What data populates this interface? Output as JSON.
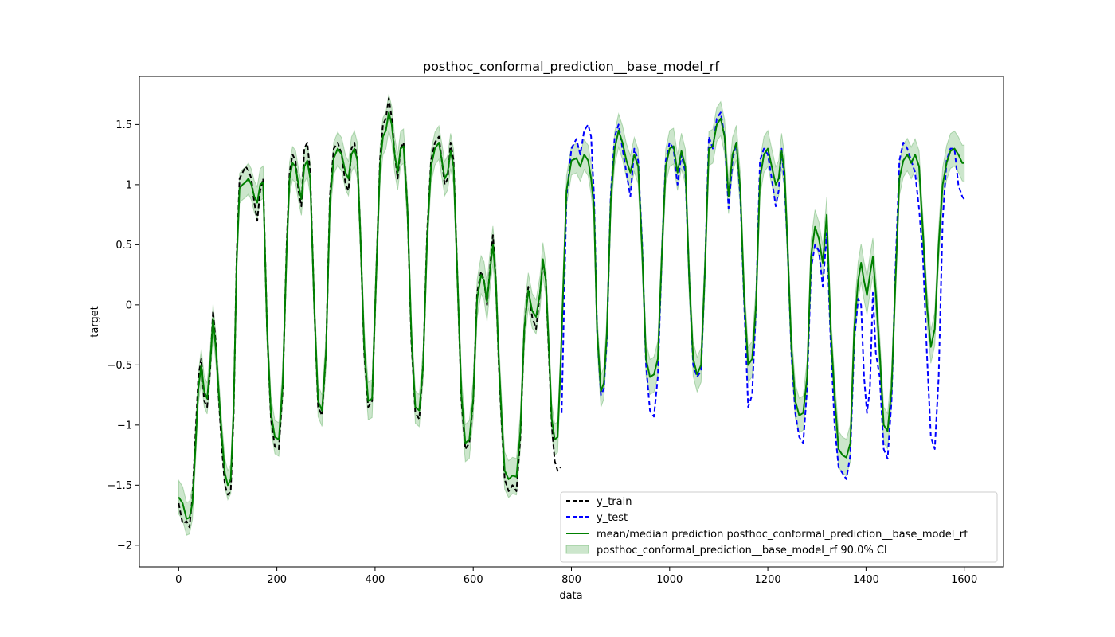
{
  "chart_data": {
    "type": "line",
    "title": "posthoc_conformal_prediction__base_model_rf",
    "xlabel": "data",
    "ylabel": "target",
    "xlim": [
      -80,
      1680
    ],
    "ylim": [
      -2.18,
      1.9
    ],
    "xticks": [
      0,
      200,
      400,
      600,
      800,
      1000,
      1200,
      1400,
      1600
    ],
    "yticks": [
      -2.0,
      -1.5,
      -1.0,
      -0.5,
      0.0,
      0.5,
      1.0,
      1.5
    ],
    "grid": false,
    "legend_position": "lower right",
    "colors": {
      "y_train": "#000000",
      "y_test": "#0000ff",
      "prediction": "#008000",
      "ci_fill": "#008000"
    },
    "series": [
      {
        "name": "y_train",
        "style": "dashed",
        "x": [
          0,
          8,
          16,
          22,
          28,
          34,
          40,
          46,
          52,
          58,
          64,
          70,
          76,
          82,
          88,
          94,
          100,
          106,
          112,
          118,
          124,
          130,
          136,
          142,
          148,
          154,
          160,
          166,
          172,
          180,
          188,
          196,
          204,
          212,
          220,
          226,
          232,
          238,
          244,
          250,
          256,
          262,
          268,
          276,
          284,
          292,
          300,
          308,
          316,
          324,
          332,
          340,
          346,
          352,
          358,
          364,
          370,
          378,
          386,
          394,
          402,
          410,
          416,
          422,
          428,
          434,
          440,
          446,
          452,
          458,
          466,
          474,
          482,
          490,
          498,
          506,
          514,
          522,
          530,
          536,
          542,
          548,
          554,
          560,
          568,
          576,
          584,
          592,
          600,
          608,
          616,
          622,
          628,
          634,
          640,
          646,
          652,
          658,
          664,
          672,
          680,
          688,
          696,
          704,
          712,
          720,
          728,
          736,
          742,
          748,
          754,
          760,
          766,
          772,
          778
        ],
        "values": [
          -1.65,
          -1.82,
          -1.8,
          -1.85,
          -1.6,
          -1.1,
          -0.6,
          -0.45,
          -0.8,
          -0.85,
          -0.55,
          -0.05,
          -0.35,
          -0.8,
          -1.2,
          -1.5,
          -1.58,
          -1.55,
          -0.9,
          0.4,
          1.05,
          1.1,
          1.15,
          1.12,
          1.05,
          0.85,
          0.7,
          0.95,
          1.05,
          -0.2,
          -0.95,
          -1.18,
          -1.2,
          -0.7,
          0.5,
          1.1,
          1.25,
          1.2,
          0.95,
          0.82,
          1.3,
          1.35,
          1.1,
          0.0,
          -0.85,
          -0.92,
          -0.4,
          0.9,
          1.3,
          1.35,
          1.25,
          1.0,
          0.95,
          1.3,
          1.35,
          1.2,
          0.6,
          -0.4,
          -0.85,
          -0.8,
          0.2,
          1.2,
          1.5,
          1.55,
          1.72,
          1.55,
          1.25,
          1.05,
          1.3,
          1.35,
          0.8,
          -0.3,
          -0.9,
          -0.95,
          -0.5,
          0.6,
          1.2,
          1.35,
          1.4,
          1.2,
          1.0,
          1.05,
          1.35,
          1.2,
          0.2,
          -0.8,
          -1.2,
          -1.15,
          -0.8,
          0.1,
          0.28,
          0.2,
          0.0,
          0.3,
          0.58,
          0.2,
          -0.5,
          -1.0,
          -1.45,
          -1.55,
          -1.5,
          -1.55,
          -1.1,
          -0.2,
          0.15,
          -0.1,
          -0.2,
          0.1,
          0.35,
          0.2,
          -0.4,
          -1.0,
          -1.3,
          -1.38,
          -1.35
        ]
      },
      {
        "name": "y_test",
        "style": "dashed",
        "x": [
          780,
          790,
          800,
          810,
          818,
          826,
          834,
          840,
          846,
          852,
          860,
          866,
          872,
          880,
          888,
          896,
          904,
          912,
          920,
          928,
          936,
          944,
          952,
          960,
          968,
          976,
          984,
          992,
          1000,
          1008,
          1016,
          1024,
          1032,
          1040,
          1048,
          1056,
          1064,
          1072,
          1080,
          1088,
          1096,
          1104,
          1112,
          1120,
          1128,
          1136,
          1144,
          1152,
          1160,
          1168,
          1176,
          1184,
          1192,
          1200,
          1208,
          1216,
          1222,
          1228,
          1234,
          1240,
          1248,
          1256,
          1264,
          1272,
          1280,
          1288,
          1296,
          1304,
          1312,
          1320,
          1328,
          1336,
          1344,
          1352,
          1360,
          1368,
          1376,
          1384,
          1390,
          1396,
          1402,
          1408,
          1414,
          1420,
          1428,
          1436,
          1444,
          1452,
          1460,
          1468,
          1476,
          1484,
          1492,
          1500,
          1508,
          1516,
          1524,
          1532,
          1540,
          1548,
          1556,
          1564,
          1572,
          1580,
          1588,
          1596,
          1600
        ],
        "values": [
          -0.9,
          0.9,
          1.3,
          1.38,
          1.25,
          1.45,
          1.5,
          1.4,
          0.9,
          -0.2,
          -0.75,
          -0.7,
          -0.3,
          0.9,
          1.4,
          1.5,
          1.3,
          1.1,
          0.9,
          1.3,
          1.2,
          0.5,
          -0.5,
          -0.88,
          -0.93,
          -0.6,
          0.4,
          1.2,
          1.35,
          1.3,
          1.0,
          1.25,
          1.1,
          0.2,
          -0.5,
          -0.6,
          -0.55,
          0.3,
          1.4,
          1.3,
          1.55,
          1.6,
          1.4,
          0.8,
          1.2,
          1.35,
          0.9,
          0.0,
          -0.85,
          -0.75,
          0.0,
          1.2,
          1.3,
          1.25,
          1.05,
          0.82,
          0.95,
          1.3,
          1.0,
          0.5,
          -0.4,
          -0.9,
          -1.1,
          -1.15,
          -0.7,
          0.3,
          0.5,
          0.45,
          0.15,
          0.6,
          -0.3,
          -1.0,
          -1.35,
          -1.4,
          -1.45,
          -1.25,
          -0.3,
          0.05,
          0.0,
          -0.6,
          -0.9,
          -0.7,
          0.1,
          -0.4,
          -0.6,
          -1.2,
          -1.28,
          -0.8,
          0.3,
          1.2,
          1.35,
          1.3,
          1.2,
          1.1,
          0.8,
          0.4,
          -0.4,
          -1.1,
          -1.2,
          -0.6,
          0.7,
          1.2,
          1.3,
          1.3,
          1.0,
          0.9,
          0.88
        ]
      },
      {
        "name": "mean/median prediction posthoc_conformal_prediction__base_model_rf",
        "style": "solid",
        "x": [
          0,
          8,
          16,
          22,
          28,
          34,
          40,
          46,
          52,
          58,
          64,
          70,
          76,
          82,
          88,
          94,
          100,
          106,
          112,
          118,
          124,
          130,
          136,
          142,
          148,
          154,
          160,
          166,
          172,
          180,
          188,
          196,
          204,
          212,
          220,
          226,
          232,
          238,
          244,
          250,
          256,
          262,
          268,
          276,
          284,
          292,
          300,
          308,
          316,
          324,
          332,
          340,
          346,
          352,
          358,
          364,
          370,
          378,
          386,
          394,
          402,
          410,
          416,
          422,
          428,
          434,
          440,
          446,
          452,
          458,
          466,
          474,
          482,
          490,
          498,
          506,
          514,
          522,
          530,
          536,
          542,
          548,
          554,
          560,
          568,
          576,
          584,
          592,
          600,
          608,
          616,
          622,
          628,
          634,
          640,
          646,
          652,
          658,
          664,
          672,
          680,
          688,
          696,
          704,
          712,
          720,
          728,
          736,
          742,
          748,
          754,
          760,
          766,
          772,
          778,
          790,
          800,
          810,
          818,
          826,
          834,
          840,
          846,
          852,
          860,
          866,
          872,
          880,
          888,
          896,
          904,
          912,
          920,
          928,
          936,
          944,
          952,
          960,
          968,
          976,
          984,
          992,
          1000,
          1008,
          1016,
          1024,
          1032,
          1040,
          1048,
          1056,
          1064,
          1072,
          1080,
          1088,
          1096,
          1104,
          1112,
          1120,
          1128,
          1136,
          1144,
          1152,
          1160,
          1168,
          1176,
          1184,
          1192,
          1200,
          1208,
          1216,
          1222,
          1228,
          1234,
          1240,
          1248,
          1256,
          1264,
          1272,
          1280,
          1288,
          1296,
          1304,
          1312,
          1320,
          1328,
          1336,
          1344,
          1352,
          1360,
          1368,
          1376,
          1384,
          1390,
          1396,
          1402,
          1408,
          1414,
          1420,
          1428,
          1436,
          1444,
          1452,
          1460,
          1468,
          1476,
          1484,
          1492,
          1500,
          1508,
          1516,
          1524,
          1532,
          1540,
          1548,
          1556,
          1564,
          1572,
          1580,
          1588,
          1596,
          1600
        ],
        "values": [
          -1.6,
          -1.65,
          -1.78,
          -1.77,
          -1.65,
          -1.2,
          -0.7,
          -0.5,
          -0.72,
          -0.78,
          -0.5,
          -0.12,
          -0.38,
          -0.75,
          -1.1,
          -1.4,
          -1.5,
          -1.45,
          -0.85,
          0.35,
          0.97,
          1.0,
          1.02,
          1.05,
          1.0,
          0.9,
          0.85,
          1.0,
          1.02,
          -0.2,
          -0.9,
          -1.1,
          -1.12,
          -0.65,
          0.45,
          1.05,
          1.18,
          1.15,
          1.0,
          0.88,
          1.15,
          1.2,
          1.05,
          0.0,
          -0.8,
          -0.88,
          -0.4,
          0.85,
          1.22,
          1.3,
          1.25,
          1.1,
          1.05,
          1.25,
          1.3,
          1.2,
          0.6,
          -0.35,
          -0.8,
          -0.78,
          0.2,
          1.15,
          1.4,
          1.45,
          1.6,
          1.5,
          1.25,
          1.1,
          1.3,
          1.32,
          0.8,
          -0.25,
          -0.85,
          -0.88,
          -0.5,
          0.55,
          1.15,
          1.3,
          1.35,
          1.2,
          1.05,
          1.1,
          1.28,
          1.15,
          0.2,
          -0.75,
          -1.15,
          -1.12,
          -0.78,
          0.05,
          0.25,
          0.2,
          0.02,
          0.28,
          0.5,
          0.2,
          -0.45,
          -0.95,
          -1.38,
          -1.45,
          -1.42,
          -1.43,
          -1.05,
          -0.2,
          0.12,
          -0.05,
          -0.1,
          0.1,
          0.38,
          0.2,
          -0.35,
          -0.95,
          -1.12,
          -1.1,
          -0.5,
          0.95,
          1.2,
          1.22,
          1.15,
          1.25,
          1.2,
          1.05,
          0.8,
          -0.2,
          -0.72,
          -0.65,
          -0.25,
          0.85,
          1.3,
          1.45,
          1.35,
          1.2,
          1.1,
          1.25,
          1.15,
          0.45,
          -0.45,
          -0.6,
          -0.58,
          -0.45,
          0.4,
          1.15,
          1.3,
          1.32,
          1.1,
          1.28,
          1.15,
          0.2,
          -0.45,
          -0.58,
          -0.5,
          0.3,
          1.3,
          1.32,
          1.5,
          1.55,
          1.4,
          0.9,
          1.25,
          1.35,
          0.95,
          0.05,
          -0.5,
          -0.45,
          0.0,
          1.05,
          1.25,
          1.3,
          1.15,
          1.0,
          1.05,
          1.28,
          1.1,
          0.5,
          -0.35,
          -0.8,
          -0.92,
          -0.9,
          -0.6,
          0.4,
          0.65,
          0.55,
          0.35,
          0.75,
          -0.2,
          -0.75,
          -1.2,
          -1.25,
          -1.27,
          -1.15,
          -0.2,
          0.2,
          0.35,
          0.2,
          0.08,
          0.25,
          0.4,
          0.1,
          -0.4,
          -1.0,
          -1.05,
          -0.7,
          0.2,
          1.05,
          1.2,
          1.25,
          1.18,
          1.25,
          1.15,
          0.6,
          0.0,
          -0.35,
          -0.2,
          0.5,
          1.0,
          1.18,
          1.28,
          1.3,
          1.25,
          1.18,
          1.18
        ]
      }
    ],
    "band": {
      "name": "posthoc_conformal_prediction__base_model_rf 90.0% CI",
      "halfwidth_x": [
        0,
        100,
        200,
        300,
        400,
        500,
        600,
        700,
        800,
        900,
        1000,
        1100,
        1200,
        1300,
        1400,
        1500,
        1600
      ],
      "halfwidth": [
        0.14,
        0.12,
        0.14,
        0.13,
        0.16,
        0.13,
        0.16,
        0.15,
        0.12,
        0.14,
        0.15,
        0.14,
        0.15,
        0.14,
        0.16,
        0.13,
        0.15
      ]
    }
  }
}
